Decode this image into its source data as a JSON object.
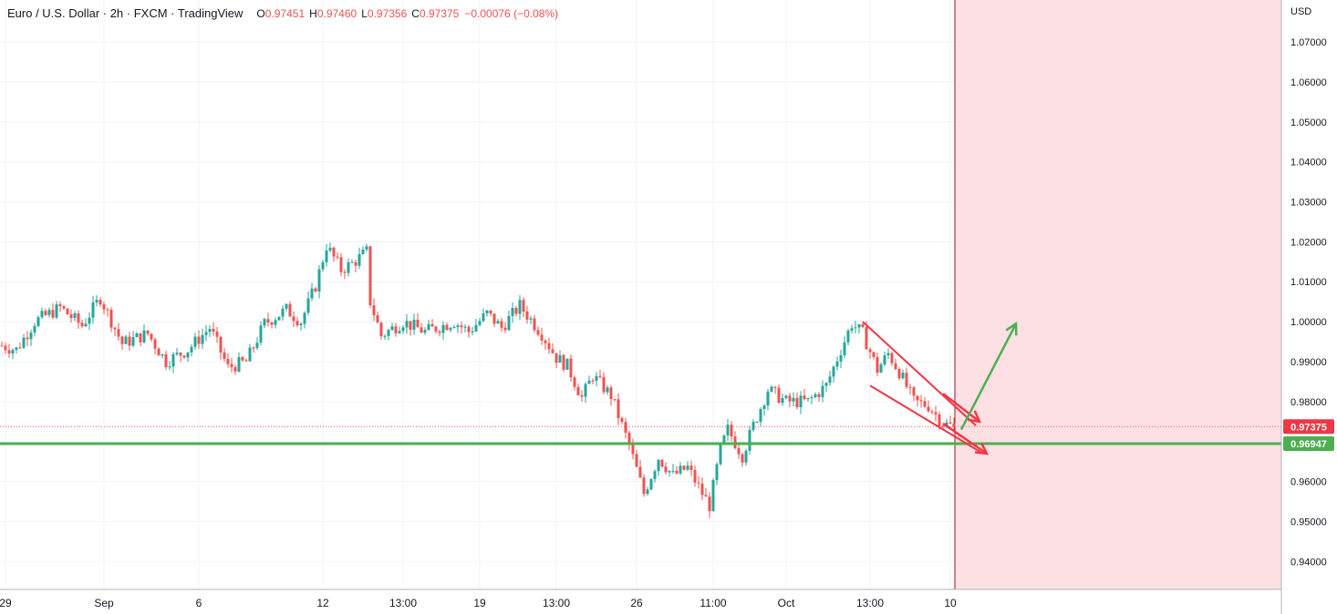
{
  "header": {
    "symbol": "Euro / U.S. Dollar · 2h · FXCM · TradingView",
    "open_label": "O",
    "open": "0.97451",
    "high_label": "H",
    "high": "0.97460",
    "low_label": "L",
    "low": "0.97356",
    "close_label": "C",
    "close": "0.97375",
    "change": "−0.00076 (−0.08%)"
  },
  "colors": {
    "up": "#26a69a",
    "down": "#ef5350",
    "support_line": "#4caf50",
    "pattern": "#f23645",
    "bullish_arrow": "#4caf50",
    "future_zone": "#fde0e3",
    "last_price_badge": "#f23645",
    "support_badge": "#4caf50"
  },
  "chart_data": {
    "type": "candlestick",
    "instrument": "EUR/USD",
    "timeframe": "2h",
    "y_axis": {
      "unit": "USD",
      "range": [
        0.933,
        1.0805
      ],
      "ticks": [
        "1.07000",
        "1.06000",
        "1.05000",
        "1.04000",
        "1.03000",
        "1.02000",
        "1.01000",
        "1.00000",
        "0.99000",
        "0.98000",
        "0.97000",
        "0.96000",
        "0.95000",
        "0.94000"
      ],
      "tick_values": [
        1.07,
        1.06,
        1.05,
        1.04,
        1.03,
        1.02,
        1.01,
        1.0,
        0.99,
        0.98,
        0.97,
        0.96,
        0.95,
        0.94
      ]
    },
    "x_axis": {
      "ticks": [
        "29",
        "Sep",
        "6",
        "12",
        "13:00",
        "19",
        "13:00",
        "26",
        "11:00",
        "Oct",
        "13:00",
        "10"
      ],
      "tick_bars": [
        1,
        28,
        54,
        88,
        110,
        131,
        152,
        174,
        195,
        215,
        238,
        260
      ]
    },
    "grid": true,
    "price_path": [
      [
        0,
        0.994
      ],
      [
        4,
        0.993
      ],
      [
        9,
        1.0
      ],
      [
        16,
        1.0035
      ],
      [
        22,
        0.999
      ],
      [
        27,
        1.006
      ],
      [
        33,
        0.9945
      ],
      [
        40,
        0.997
      ],
      [
        45,
        0.99
      ],
      [
        51,
        0.993
      ],
      [
        57,
        0.9985
      ],
      [
        62,
        0.9885
      ],
      [
        67,
        0.99
      ],
      [
        72,
        0.9995
      ],
      [
        78,
        1.003
      ],
      [
        82,
        1.0
      ],
      [
        86,
        1.009
      ],
      [
        89,
        1.019
      ],
      [
        93,
        1.013
      ],
      [
        96,
        1.0145
      ],
      [
        100,
        1.0175
      ],
      [
        101,
        1.005
      ],
      [
        104,
        0.9965
      ],
      [
        110,
        1.0
      ],
      [
        116,
        0.9975
      ],
      [
        124,
        1.0
      ],
      [
        128,
        0.9975
      ],
      [
        133,
        1.002
      ],
      [
        137,
        0.9985
      ],
      [
        142,
        1.004
      ],
      [
        148,
        0.997
      ],
      [
        152,
        0.991
      ],
      [
        155,
        0.989
      ],
      [
        159,
        0.981
      ],
      [
        162,
        0.9865
      ],
      [
        167,
        0.9815
      ],
      [
        172,
        0.969
      ],
      [
        176,
        0.957
      ],
      [
        180,
        0.966
      ],
      [
        184,
        0.9615
      ],
      [
        188,
        0.9635
      ],
      [
        192,
        0.957
      ],
      [
        194,
        0.954
      ],
      [
        197,
        0.968
      ],
      [
        199,
        0.973
      ],
      [
        203,
        0.9665
      ],
      [
        206,
        0.974
      ],
      [
        210,
        0.983
      ],
      [
        215,
        0.98
      ],
      [
        221,
        0.98
      ],
      [
        226,
        0.984
      ],
      [
        230,
        0.993
      ],
      [
        233,
        0.9995
      ],
      [
        236,
        0.997
      ],
      [
        240,
        0.988
      ],
      [
        243,
        0.992
      ],
      [
        246,
        0.9875
      ],
      [
        250,
        0.98
      ],
      [
        254,
        0.979
      ],
      [
        258,
        0.9745
      ],
      [
        261,
        0.97375
      ]
    ],
    "last_price": 0.97375,
    "last_price_label": "0.97375",
    "support_level": 0.96947,
    "support_label": "0.96947",
    "annotations": {
      "falling_wedge": {
        "upper": [
          [
            236,
            1.0
          ],
          [
            267,
            0.974
          ]
        ],
        "lower": [
          [
            238,
            0.984
          ],
          [
            269,
            0.967
          ]
        ]
      },
      "breakout_arrows": [
        {
          "color": "#f23645",
          "from": [
            258,
            0.982
          ],
          "to": [
            268,
            0.975
          ]
        },
        {
          "color": "#f23645",
          "from": [
            258,
            0.9745
          ],
          "to": [
            270,
            0.967
          ]
        },
        {
          "color": "#4caf50",
          "from": [
            263,
            0.973
          ],
          "to": [
            278,
            0.9995
          ]
        }
      ],
      "future_zone_start_bar": 261
    }
  }
}
